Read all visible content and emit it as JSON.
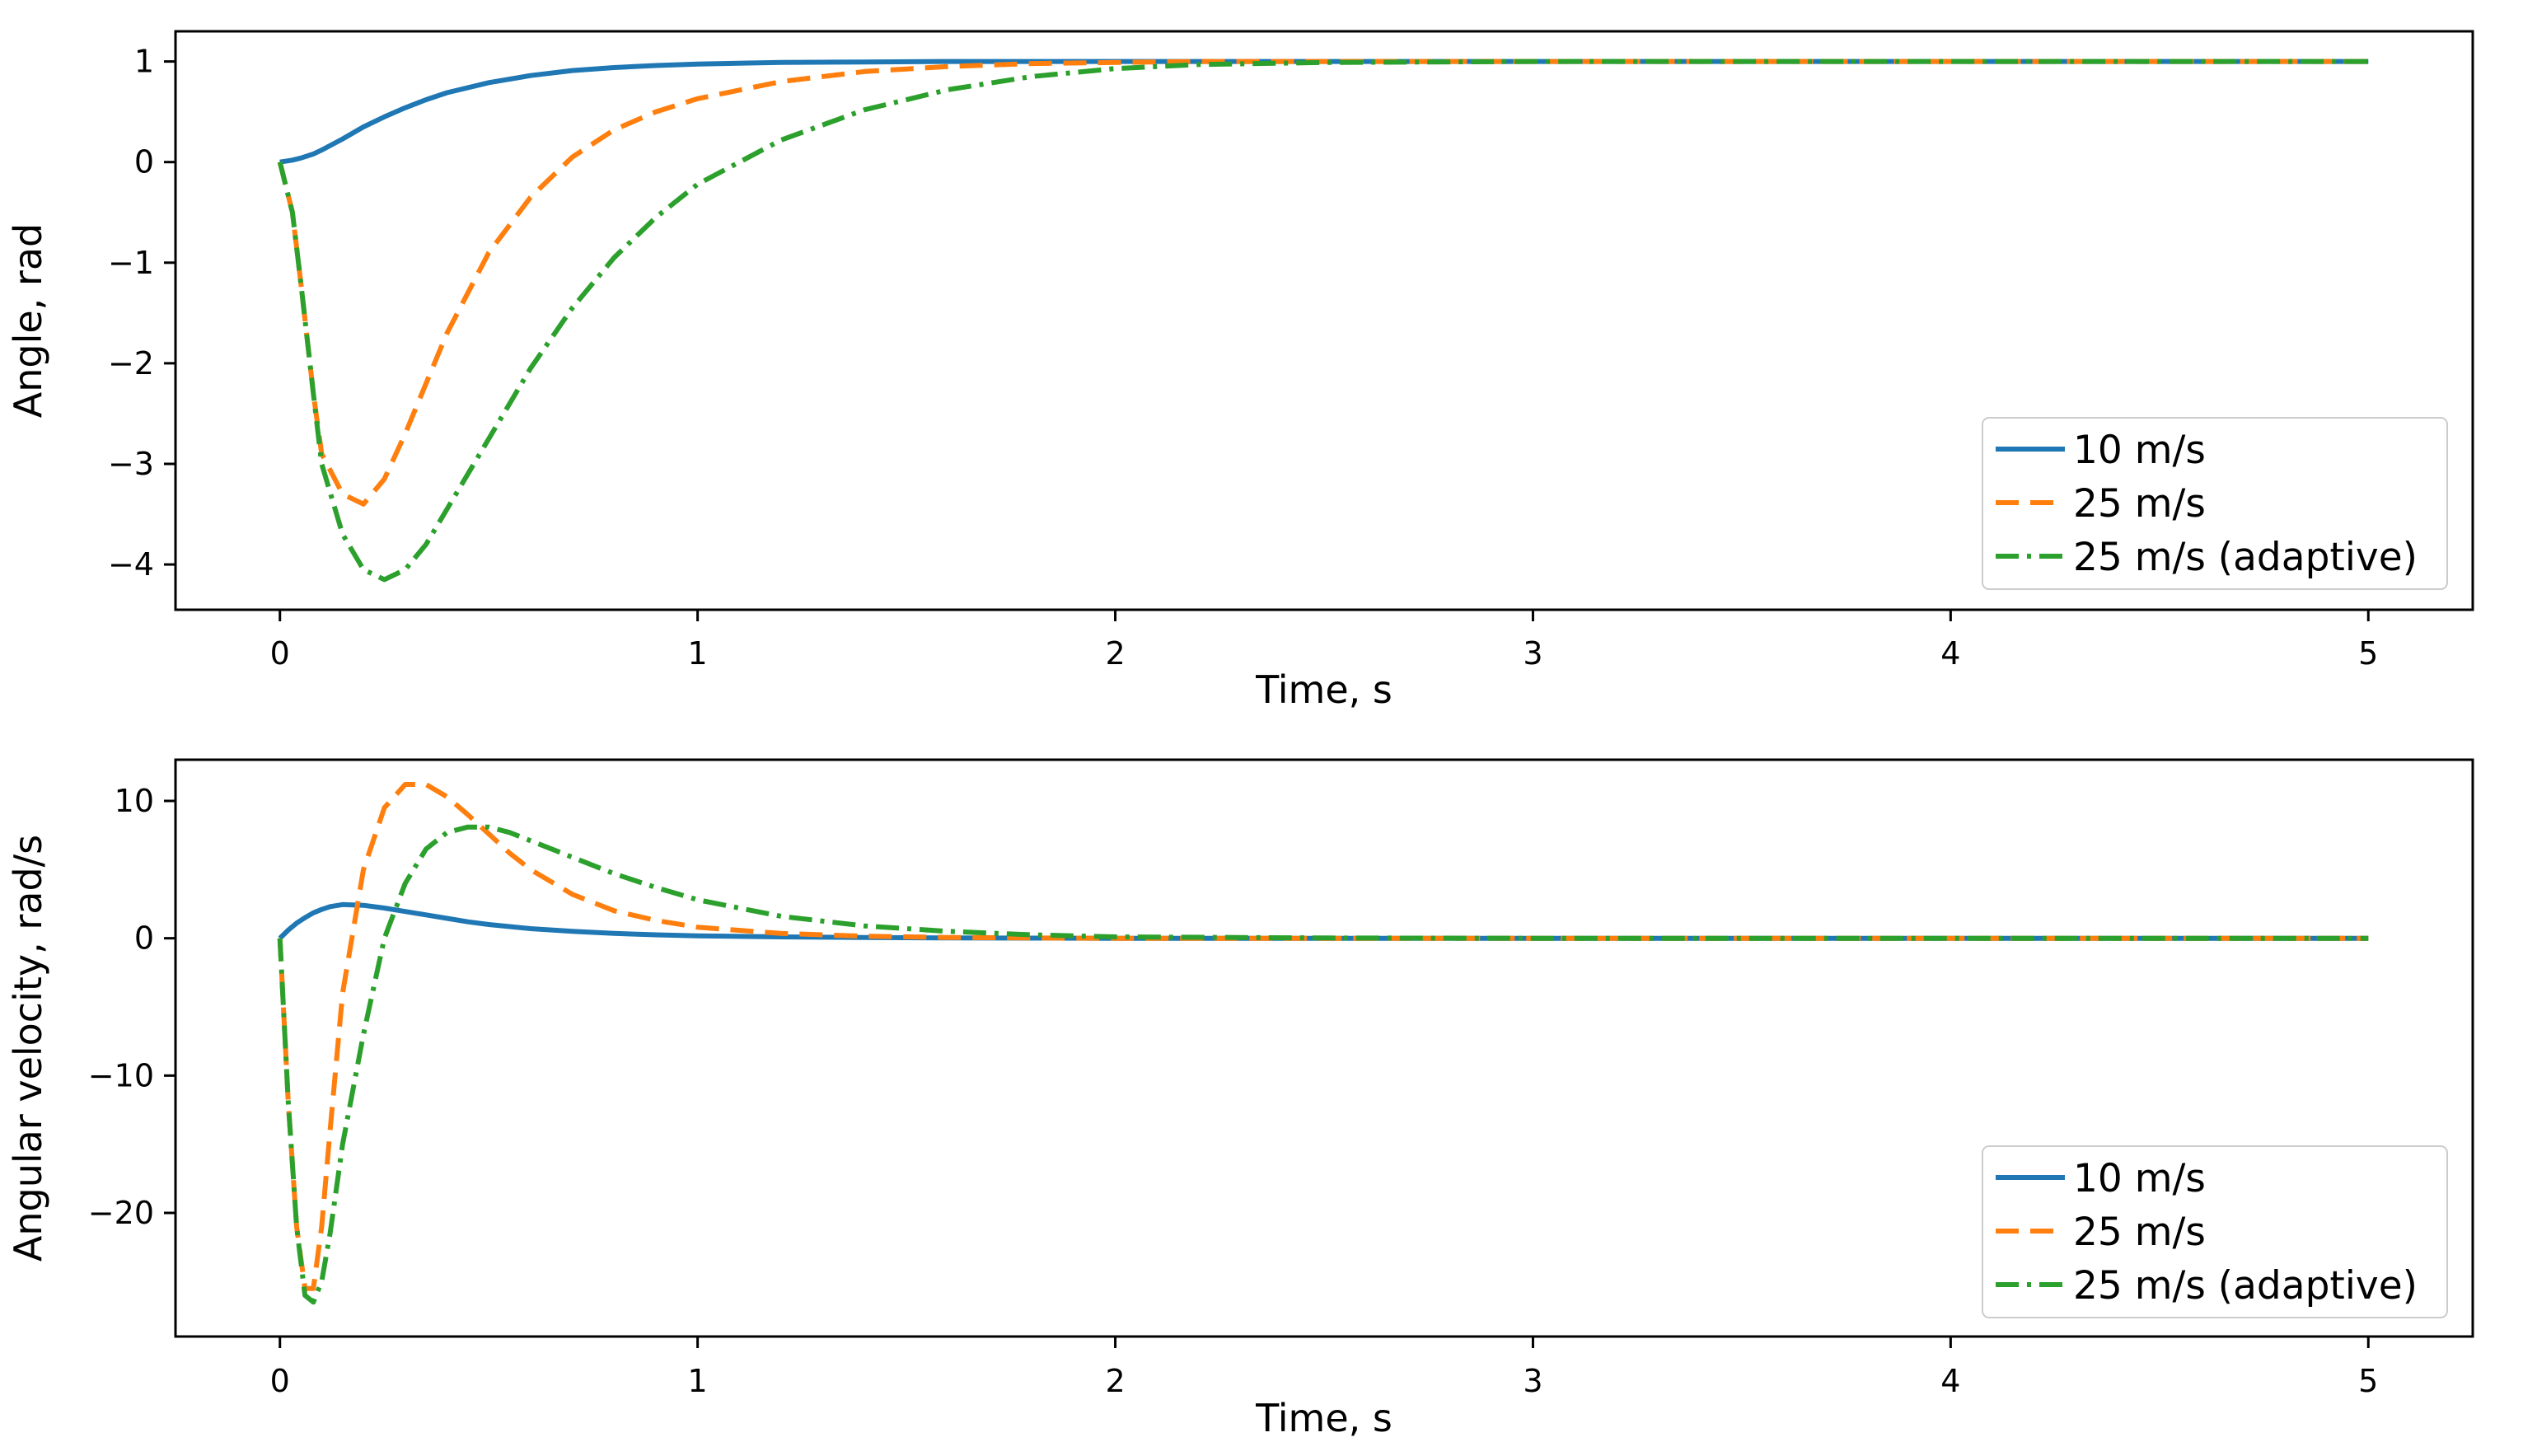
{
  "chart_data": [
    {
      "type": "line",
      "title": "",
      "xlabel": "Time, s",
      "ylabel": "Angle, rad",
      "xlim": [
        -0.25,
        5.25
      ],
      "ylim": [
        -4.45,
        1.3
      ],
      "x_ticks": [
        0,
        1,
        2,
        3,
        4,
        5
      ],
      "x_tick_labels": [
        "0",
        "1",
        "2",
        "3",
        "4",
        "5"
      ],
      "y_ticks": [
        1,
        0,
        -1,
        -2,
        -3,
        -4
      ],
      "y_tick_labels": [
        "1",
        "0",
        "−1",
        "−2",
        "−3",
        "−4"
      ],
      "grid": false,
      "legend_position": "lower-right",
      "x": [
        0,
        0.03,
        0.05,
        0.08,
        0.1,
        0.15,
        0.2,
        0.25,
        0.3,
        0.35,
        0.4,
        0.5,
        0.6,
        0.7,
        0.8,
        0.9,
        1.0,
        1.2,
        1.4,
        1.6,
        1.8,
        2.0,
        2.2,
        2.5,
        3.0,
        3.5,
        4.0,
        4.5,
        5.0
      ],
      "series": [
        {
          "name": "10 m/s",
          "color": "#1f77b4",
          "dash": "solid",
          "values": [
            0,
            0.02,
            0.04,
            0.08,
            0.12,
            0.23,
            0.35,
            0.45,
            0.54,
            0.62,
            0.69,
            0.79,
            0.86,
            0.91,
            0.94,
            0.96,
            0.975,
            0.99,
            0.995,
            1.0,
            1.0,
            1.0,
            1.0,
            1.0,
            1.0,
            1.0,
            1.0,
            1.0,
            1.0
          ]
        },
        {
          "name": "25 m/s",
          "color": "#ff7f0e",
          "dash": "dashed",
          "values": [
            0,
            -0.5,
            -1.2,
            -2.3,
            -2.9,
            -3.3,
            -3.4,
            -3.15,
            -2.7,
            -2.2,
            -1.7,
            -0.9,
            -0.35,
            0.05,
            0.32,
            0.5,
            0.63,
            0.8,
            0.9,
            0.95,
            0.98,
            0.99,
            1.0,
            1.0,
            1.0,
            1.0,
            1.0,
            1.0,
            1.0
          ]
        },
        {
          "name": "25 m/s (adaptive)",
          "color": "#2ca02c",
          "dash": "dashdot",
          "values": [
            0,
            -0.5,
            -1.2,
            -2.3,
            -3.0,
            -3.7,
            -4.05,
            -4.15,
            -4.05,
            -3.8,
            -3.45,
            -2.75,
            -2.05,
            -1.45,
            -0.95,
            -0.55,
            -0.22,
            0.22,
            0.52,
            0.72,
            0.85,
            0.93,
            0.97,
            0.99,
            1.0,
            1.0,
            1.0,
            1.0,
            1.0
          ]
        }
      ]
    },
    {
      "type": "line",
      "title": "",
      "xlabel": "Time, s",
      "ylabel": "Angular velocity, rad/s",
      "xlim": [
        -0.25,
        5.25
      ],
      "ylim": [
        -29,
        13
      ],
      "x_ticks": [
        0,
        1,
        2,
        3,
        4,
        5
      ],
      "x_tick_labels": [
        "0",
        "1",
        "2",
        "3",
        "4",
        "5"
      ],
      "y_ticks": [
        10,
        0,
        -10,
        -20
      ],
      "y_tick_labels": [
        "10",
        "0",
        "−10",
        "−20"
      ],
      "grid": false,
      "legend_position": "lower-right",
      "x": [
        0,
        0.02,
        0.04,
        0.06,
        0.08,
        0.1,
        0.12,
        0.15,
        0.2,
        0.25,
        0.3,
        0.35,
        0.4,
        0.45,
        0.5,
        0.55,
        0.6,
        0.7,
        0.8,
        0.9,
        1.0,
        1.2,
        1.4,
        1.6,
        1.8,
        2.0,
        2.5,
        3.0,
        4.0,
        5.0
      ],
      "series": [
        {
          "name": "10 m/s",
          "color": "#1f77b4",
          "dash": "solid",
          "values": [
            0,
            0.6,
            1.1,
            1.5,
            1.85,
            2.1,
            2.3,
            2.45,
            2.4,
            2.2,
            1.95,
            1.7,
            1.45,
            1.2,
            1.0,
            0.85,
            0.7,
            0.5,
            0.35,
            0.25,
            0.18,
            0.1,
            0.05,
            0.02,
            0.01,
            0,
            0,
            0,
            0,
            0
          ]
        },
        {
          "name": "25 m/s",
          "color": "#ff7f0e",
          "dash": "dashed",
          "values": [
            0,
            -12,
            -21,
            -25.5,
            -25.5,
            -21,
            -14,
            -4,
            5,
            9.5,
            11.2,
            11.2,
            10.3,
            9.0,
            7.6,
            6.2,
            5.0,
            3.2,
            2.0,
            1.3,
            0.8,
            0.35,
            0.15,
            0.06,
            0.02,
            0,
            0,
            0,
            0,
            0
          ]
        },
        {
          "name": "25 m/s (adaptive)",
          "color": "#2ca02c",
          "dash": "dashdot",
          "values": [
            0,
            -12,
            -21,
            -26,
            -26.5,
            -25,
            -21.5,
            -15,
            -7,
            0,
            4,
            6.5,
            7.7,
            8.1,
            8.1,
            7.7,
            7.1,
            5.9,
            4.7,
            3.7,
            2.8,
            1.6,
            0.9,
            0.5,
            0.25,
            0.1,
            0.02,
            0,
            0,
            0
          ]
        }
      ]
    }
  ]
}
